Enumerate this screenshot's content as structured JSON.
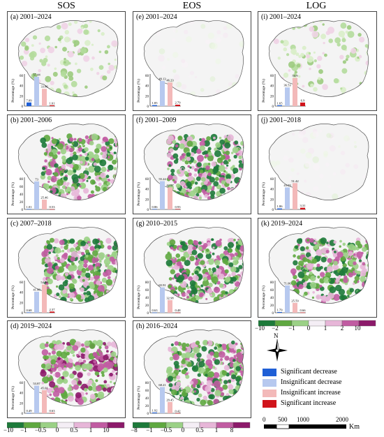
{
  "columns": [
    "SOS",
    "EOS",
    "LOG"
  ],
  "panels": [
    {
      "id": "a",
      "title": "(a) 2001–2024",
      "values": [
        "7.09",
        "57.44",
        "33.86",
        "1.61"
      ],
      "tint": "mild"
    },
    {
      "id": "b",
      "title": "(b) 2001–2006",
      "values": [
        "1.01",
        "73",
        "25.46",
        "0.53"
      ],
      "tint": "green"
    },
    {
      "id": "c",
      "title": "(c) 2007–2018",
      "values": [
        "0.68",
        "41.08",
        "54.99",
        "2.37"
      ],
      "tint": "mixed"
    },
    {
      "id": "d",
      "title": "(d) 2019–2024",
      "values": [
        "0.49",
        "53.87",
        "45.01",
        "0.63"
      ],
      "tint": "pink"
    },
    {
      "id": "e",
      "title": "(e) 2001–2024",
      "values": [
        "1.85",
        "49.13",
        "46.23",
        "2.79"
      ],
      "tint": "faint"
    },
    {
      "id": "f",
      "title": "(f) 2001–2009",
      "values": [
        "0.86",
        "55.24",
        "42.97",
        "0.93"
      ],
      "tint": "green"
    },
    {
      "id": "g",
      "title": "(g) 2010–2015",
      "values": [
        "0.63",
        "65.91",
        "32.98",
        "0.48"
      ],
      "tint": "green"
    },
    {
      "id": "h",
      "title": "(h) 2016–2024",
      "values": [
        "1.92",
        "68.21",
        "29.45",
        "0.42"
      ],
      "tint": "mixed"
    },
    {
      "id": "i",
      "title": "(i) 2001–2024",
      "values": [
        "1.65",
        "36.53",
        "54.9",
        "6.9"
      ],
      "tint": "mild"
    },
    {
      "id": "j",
      "title": "(j) 2001–2018",
      "values": [
        "1.86",
        "43.03",
        "51.42",
        "3.31"
      ],
      "tint": "faint"
    },
    {
      "id": "k",
      "title": "(k) 2019–2024",
      "values": [
        "1.79",
        "71.06",
        "25.59",
        "0.66"
      ],
      "tint": "green"
    }
  ],
  "inset_axis": {
    "ylabel": "Percentage (%)",
    "ticks": [
      "0",
      "20",
      "40",
      "60"
    ],
    "ticks_tall": [
      "0",
      "20",
      "40",
      "60",
      "80"
    ]
  },
  "bar_colors": [
    "#1f5fd6",
    "#b7c9ef",
    "#f3b9b9",
    "#d0141b"
  ],
  "legends": {
    "sos": {
      "ticks": [
        "−10",
        "−1",
        "−0.5",
        "0",
        "0.5",
        "1",
        "10"
      ]
    },
    "eos": {
      "ticks": [
        "−8",
        "−1",
        "−0.5",
        "0",
        "0.5",
        "1",
        "8"
      ]
    },
    "log": {
      "ticks": [
        "−10",
        "−2",
        "−1",
        "0",
        "1",
        "2",
        "10"
      ]
    },
    "colors": [
      "#1d7a3a",
      "#5fa840",
      "#9bd186",
      "#f4eef5",
      "#e7b6d8",
      "#c15ca2",
      "#8c1a6a"
    ]
  },
  "trend_legend": [
    "Significant decrease",
    "Insignificant decrease",
    "Insignificant increase",
    "Significant increase"
  ],
  "compass": "N",
  "scale": {
    "labels": [
      "0",
      "500",
      "1000",
      "2000"
    ],
    "unit": "Km"
  }
}
